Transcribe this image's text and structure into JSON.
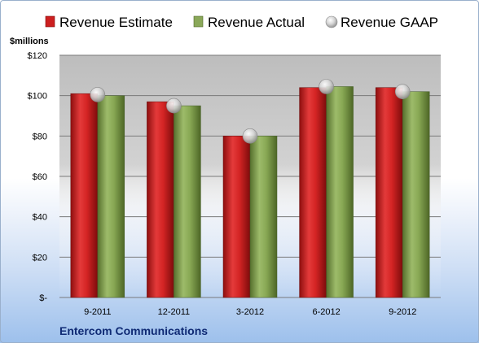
{
  "chart_data": {
    "type": "bar",
    "title": "",
    "unit_label": "$millions",
    "footer": "Entercom Communications",
    "categories": [
      "9-2011",
      "12-2011",
      "3-2012",
      "6-2012",
      "9-2012"
    ],
    "series": [
      {
        "name": "Revenue Estimate",
        "type": "bar",
        "color": "#cc1f1f",
        "values": [
          101,
          97,
          80,
          104,
          104
        ]
      },
      {
        "name": "Revenue Actual",
        "type": "bar",
        "color": "#7f9e4a",
        "values": [
          100,
          95,
          80,
          104.5,
          102
        ]
      },
      {
        "name": "Revenue GAAP",
        "type": "marker",
        "color": "#c8c8c8",
        "values": [
          100.5,
          95,
          80,
          104.5,
          102
        ]
      }
    ],
    "ylim": [
      0,
      120
    ],
    "yticks": [
      0,
      20,
      40,
      60,
      80,
      100,
      120
    ],
    "ytick_labels": [
      "$-",
      "$20",
      "$40",
      "$60",
      "$80",
      "$100",
      "$120"
    ],
    "grid": true,
    "legend": "top"
  }
}
